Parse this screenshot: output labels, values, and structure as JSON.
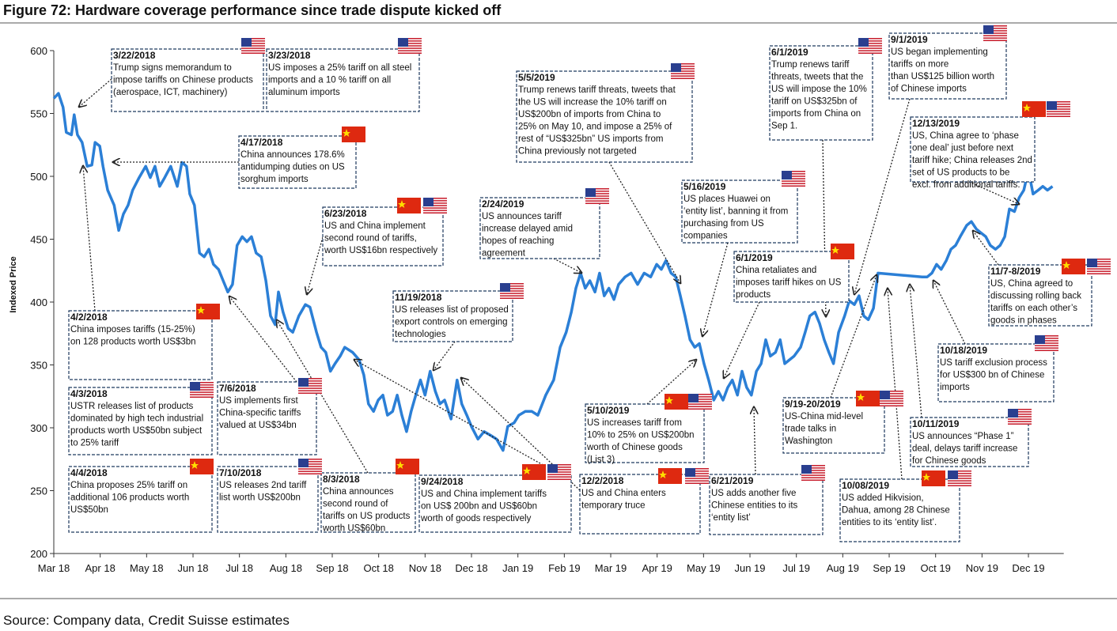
{
  "chart_data": {
    "type": "line",
    "title": "Figure 72: Hardware coverage performance since trade dispute kicked off",
    "ylabel": "Indexed Price",
    "source": "Source: Company data, Credit Suisse estimates",
    "xlim": [
      0,
      22
    ],
    "xticks": [
      {
        "value": 0,
        "label": "Mar 18"
      },
      {
        "value": 1,
        "label": "Apr 18"
      },
      {
        "value": 2,
        "label": "May 18"
      },
      {
        "value": 3,
        "label": "Jun 18"
      },
      {
        "value": 4,
        "label": "Jul 18"
      },
      {
        "value": 5,
        "label": "Aug 18"
      },
      {
        "value": 6,
        "label": "Sep 18"
      },
      {
        "value": 7,
        "label": "Oct 18"
      },
      {
        "value": 8,
        "label": "Nov 18"
      },
      {
        "value": 9,
        "label": "Dec 18"
      },
      {
        "value": 10,
        "label": "Jan 19"
      },
      {
        "value": 11,
        "label": "Feb 19"
      },
      {
        "value": 12,
        "label": "Mar 19"
      },
      {
        "value": 13,
        "label": "Apr 19"
      },
      {
        "value": 14,
        "label": "May 19"
      },
      {
        "value": 15,
        "label": "Jun 19"
      },
      {
        "value": 16,
        "label": "Jul 19"
      },
      {
        "value": 17,
        "label": "Aug 19"
      },
      {
        "value": 18,
        "label": "Sep 19"
      },
      {
        "value": 19,
        "label": "Oct 19"
      },
      {
        "value": 20,
        "label": "Nov 19"
      },
      {
        "value": 21,
        "label": "Dec 19"
      }
    ],
    "ylim": [
      200,
      600
    ],
    "yticks": [
      200,
      250,
      300,
      350,
      400,
      450,
      500,
      550,
      600
    ],
    "x": [
      0,
      0.1,
      0.2,
      0.27,
      0.38,
      0.44,
      0.51,
      0.61,
      0.72,
      0.82,
      0.89,
      0.99,
      1.06,
      1.16,
      1.3,
      1.4,
      1.5,
      1.6,
      1.7,
      1.84,
      1.98,
      2.08,
      2.18,
      2.28,
      2.39,
      2.52,
      2.66,
      2.76,
      2.86,
      2.93,
      3.03,
      3.14,
      3.24,
      3.34,
      3.44,
      3.55,
      3.65,
      3.75,
      3.85,
      3.95,
      4.06,
      4.16,
      4.26,
      4.36,
      4.47,
      4.57,
      4.67,
      4.77,
      4.84,
      4.94,
      5.05,
      5.15,
      5.28,
      5.42,
      5.52,
      5.66,
      5.76,
      5.86,
      5.96,
      6.06,
      6.17,
      6.27,
      6.44,
      6.58,
      6.68,
      6.78,
      6.89,
      6.99,
      7.09,
      7.19,
      7.3,
      7.4,
      7.5,
      7.6,
      7.7,
      7.8,
      7.9,
      8.0,
      8.11,
      8.22,
      8.32,
      8.42,
      8.56,
      8.69,
      8.79,
      8.9,
      9.0,
      9.14,
      9.27,
      9.41,
      9.54,
      9.68,
      9.78,
      9.92,
      10.02,
      10.16,
      10.3,
      10.43,
      10.6,
      10.77,
      10.91,
      11.04,
      11.15,
      11.25,
      11.35,
      11.45,
      11.55,
      11.66,
      11.76,
      11.86,
      11.96,
      12.07,
      12.17,
      12.31,
      12.44,
      12.58,
      12.72,
      12.86,
      12.99,
      13.09,
      13.19,
      13.3,
      13.4,
      13.5,
      13.6,
      13.71,
      13.81,
      13.91,
      14.01,
      14.11,
      14.22,
      14.32,
      14.42,
      14.52,
      14.62,
      14.73,
      14.83,
      14.93,
      15.03,
      15.14,
      15.24,
      15.34,
      15.44,
      15.55,
      15.65,
      15.75,
      15.85,
      15.95,
      16.09,
      16.19,
      16.29,
      16.4,
      16.5,
      16.6,
      16.7,
      16.8,
      16.91,
      17.04,
      17.14,
      17.25,
      17.35,
      17.45,
      17.55,
      17.66,
      17.76,
      18.71,
      18.82,
      18.92,
      19.02,
      19.12,
      19.23,
      19.33,
      19.43,
      19.53,
      19.67,
      19.77,
      19.88,
      19.98,
      20.08,
      20.18,
      20.29,
      20.39,
      20.49,
      20.59,
      20.7,
      20.8,
      20.9,
      21.0,
      21.1,
      21.21,
      21.31,
      21.41,
      21.52
    ],
    "series": [
      {
        "color": "#2b7fd6",
        "values": [
          562,
          566,
          555,
          535,
          533,
          549,
          533,
          527,
          508,
          509,
          527,
          524,
          508,
          489,
          477,
          457,
          470,
          477,
          489,
          499,
          508,
          499,
          508,
          492,
          499,
          508,
          492,
          511,
          508,
          486,
          477,
          439,
          436,
          442,
          430,
          426,
          417,
          408,
          414,
          445,
          452,
          448,
          452,
          439,
          436,
          417,
          389,
          382,
          408,
          392,
          379,
          376,
          389,
          398,
          396,
          376,
          364,
          360,
          345,
          351,
          357,
          364,
          360,
          354,
          342,
          319,
          313,
          322,
          326,
          310,
          313,
          326,
          310,
          297,
          313,
          326,
          338,
          326,
          345,
          329,
          319,
          322,
          307,
          338,
          319,
          310,
          301,
          291,
          297,
          294,
          291,
          282,
          301,
          304,
          310,
          313,
          313,
          310,
          326,
          338,
          364,
          376,
          392,
          411,
          423,
          411,
          417,
          408,
          423,
          405,
          411,
          402,
          414,
          420,
          423,
          414,
          423,
          420,
          430,
          426,
          433,
          423,
          420,
          405,
          389,
          370,
          364,
          367,
          351,
          338,
          322,
          329,
          322,
          332,
          338,
          326,
          345,
          332,
          326,
          345,
          351,
          370,
          357,
          360,
          370,
          351,
          354,
          357,
          364,
          376,
          389,
          392,
          383,
          370,
          360,
          351,
          376,
          389,
          401,
          398,
          405,
          389,
          386,
          395,
          423,
          420,
          420,
          423,
          430,
          426,
          433,
          442,
          445,
          452,
          461,
          464,
          458,
          455,
          452,
          445,
          442,
          445,
          452,
          474,
          472,
          483,
          489,
          505,
          486,
          489,
          492,
          489,
          492
        ]
      }
    ],
    "annotations": [
      {
        "date": "3/22/2018",
        "lines": [
          "Trump signs memorandum to",
          "impose tariffs on Chinese products",
          "(aerospace, ICT, machinery)"
        ]
      },
      {
        "date": "3/23/2018",
        "lines": [
          "US imposes a 25% tariff on all steel",
          "imports and a 10 % tariff on all",
          "aluminum imports"
        ]
      },
      {
        "date": "4/17/2018",
        "lines": [
          "China announces 178.6%",
          "antidumping duties on US",
          "sorghum imports"
        ]
      },
      {
        "date": "6/23/2018",
        "lines": [
          "US and China implement",
          "second round of tariffs,",
          "worth US$16bn respectively"
        ]
      },
      {
        "date": "11/19/2018",
        "lines": [
          "US releases list of proposed",
          "export controls on emerging",
          "technologies"
        ]
      },
      {
        "date": "2/24/2019",
        "lines": [
          "US announces tariff",
          "increase delayed amid",
          "hopes of reaching",
          "agreement"
        ]
      },
      {
        "date": "5/5/2019",
        "lines": [
          "Trump renews tariff threats, tweets that",
          "the US will increase the 10% tariff on",
          "US$200bn of imports from China to",
          "25% on May 10, and impose a 25% of",
          "rest of “US$325bn” US imports from",
          "China previously not targeted"
        ]
      },
      {
        "date": "5/16/2019",
        "lines": [
          "US places Huawei on",
          "‘entity list’, banning it from",
          "purchasing from US",
          "companies"
        ]
      },
      {
        "date": "6/1/2019",
        "lines": [
          "Trump renews tariff",
          "threats, tweets that the",
          "US will impose the 10%",
          "tariff on US$325bn of",
          "imports from China on",
          "Sep 1."
        ]
      },
      {
        "date": "6/1/2019",
        "lines": [
          "China retaliates and",
          "imposes tariff hikes on US",
          "products"
        ]
      },
      {
        "date": "9/1/2019",
        "lines": [
          "US began implementing",
          "tariffs on more",
          "than US$125 billion worth",
          "of Chinese imports"
        ]
      },
      {
        "date": "12/13/2019",
        "lines": [
          "US, China agree to ‘phase",
          "one deal’ just before next",
          "tariff hike; China releases 2nd",
          "set of US products to be",
          "excl. from additional tariffs."
        ]
      },
      {
        "date": "11/7-8/2019",
        "lines": [
          "US, China agreed to",
          "discussing rolling back",
          "tariffs on each other’s",
          "goods in phases"
        ]
      },
      {
        "date": "10/18/2019",
        "lines": [
          "US tariff exclusion process",
          "for US$300 bn of Chinese",
          "imports"
        ]
      },
      {
        "date": "10/11/2019",
        "lines": [
          "US announces “Phase 1”",
          "deal, delays tariff increase",
          "for Chinese goods"
        ]
      },
      {
        "date": "10/08/2019",
        "lines": [
          "US added Hikvision,",
          "Dahua, among 28 Chinese",
          "entities to its ‘entity list’."
        ]
      },
      {
        "date": "9/19-20/2019",
        "lines": [
          "US-China mid-level",
          "trade talks in",
          "Washington"
        ]
      },
      {
        "date": "6/21/2019",
        "lines": [
          "US adds another five",
          "Chinese entities to its",
          "‘entity list’"
        ]
      },
      {
        "date": "5/10/2019",
        "lines": [
          "US increases tariff from",
          "10% to 25% on US$200bn",
          "worth of Chinese goods",
          "(List 3)"
        ]
      },
      {
        "date": "12/2/2018",
        "lines": [
          "US and China enters",
          "temporary truce"
        ]
      },
      {
        "date": "9/24/2018",
        "lines": [
          "US and China implement tariffs",
          "on US$ 200bn and US$60bn",
          "worth of goods respectively"
        ]
      },
      {
        "date": "8/3/2018",
        "lines": [
          "China announces",
          "second round of",
          "tariffs on US products",
          "worth US$60bn"
        ]
      },
      {
        "date": "7/10/2018",
        "lines": [
          "US releases 2nd tariff",
          "list worth US$200bn"
        ]
      },
      {
        "date": "7/6/2018",
        "lines": [
          "US implements first",
          "China-specific tariffs",
          "valued at US$34bn"
        ]
      },
      {
        "date": "4/2/2018",
        "lines": [
          "China imposes tariffs (15-25%)",
          "on 128 products worth US$3bn"
        ]
      },
      {
        "date": "4/3/2018",
        "lines": [
          "USTR releases list of products",
          "dominated by high tech industrial",
          "products worth US$50bn subject",
          "to 25% tariff"
        ]
      },
      {
        "date": "4/4/2018",
        "lines": [
          "China proposes 25% tariff on",
          "additional 106 products worth",
          "US$50bn"
        ]
      }
    ]
  }
}
